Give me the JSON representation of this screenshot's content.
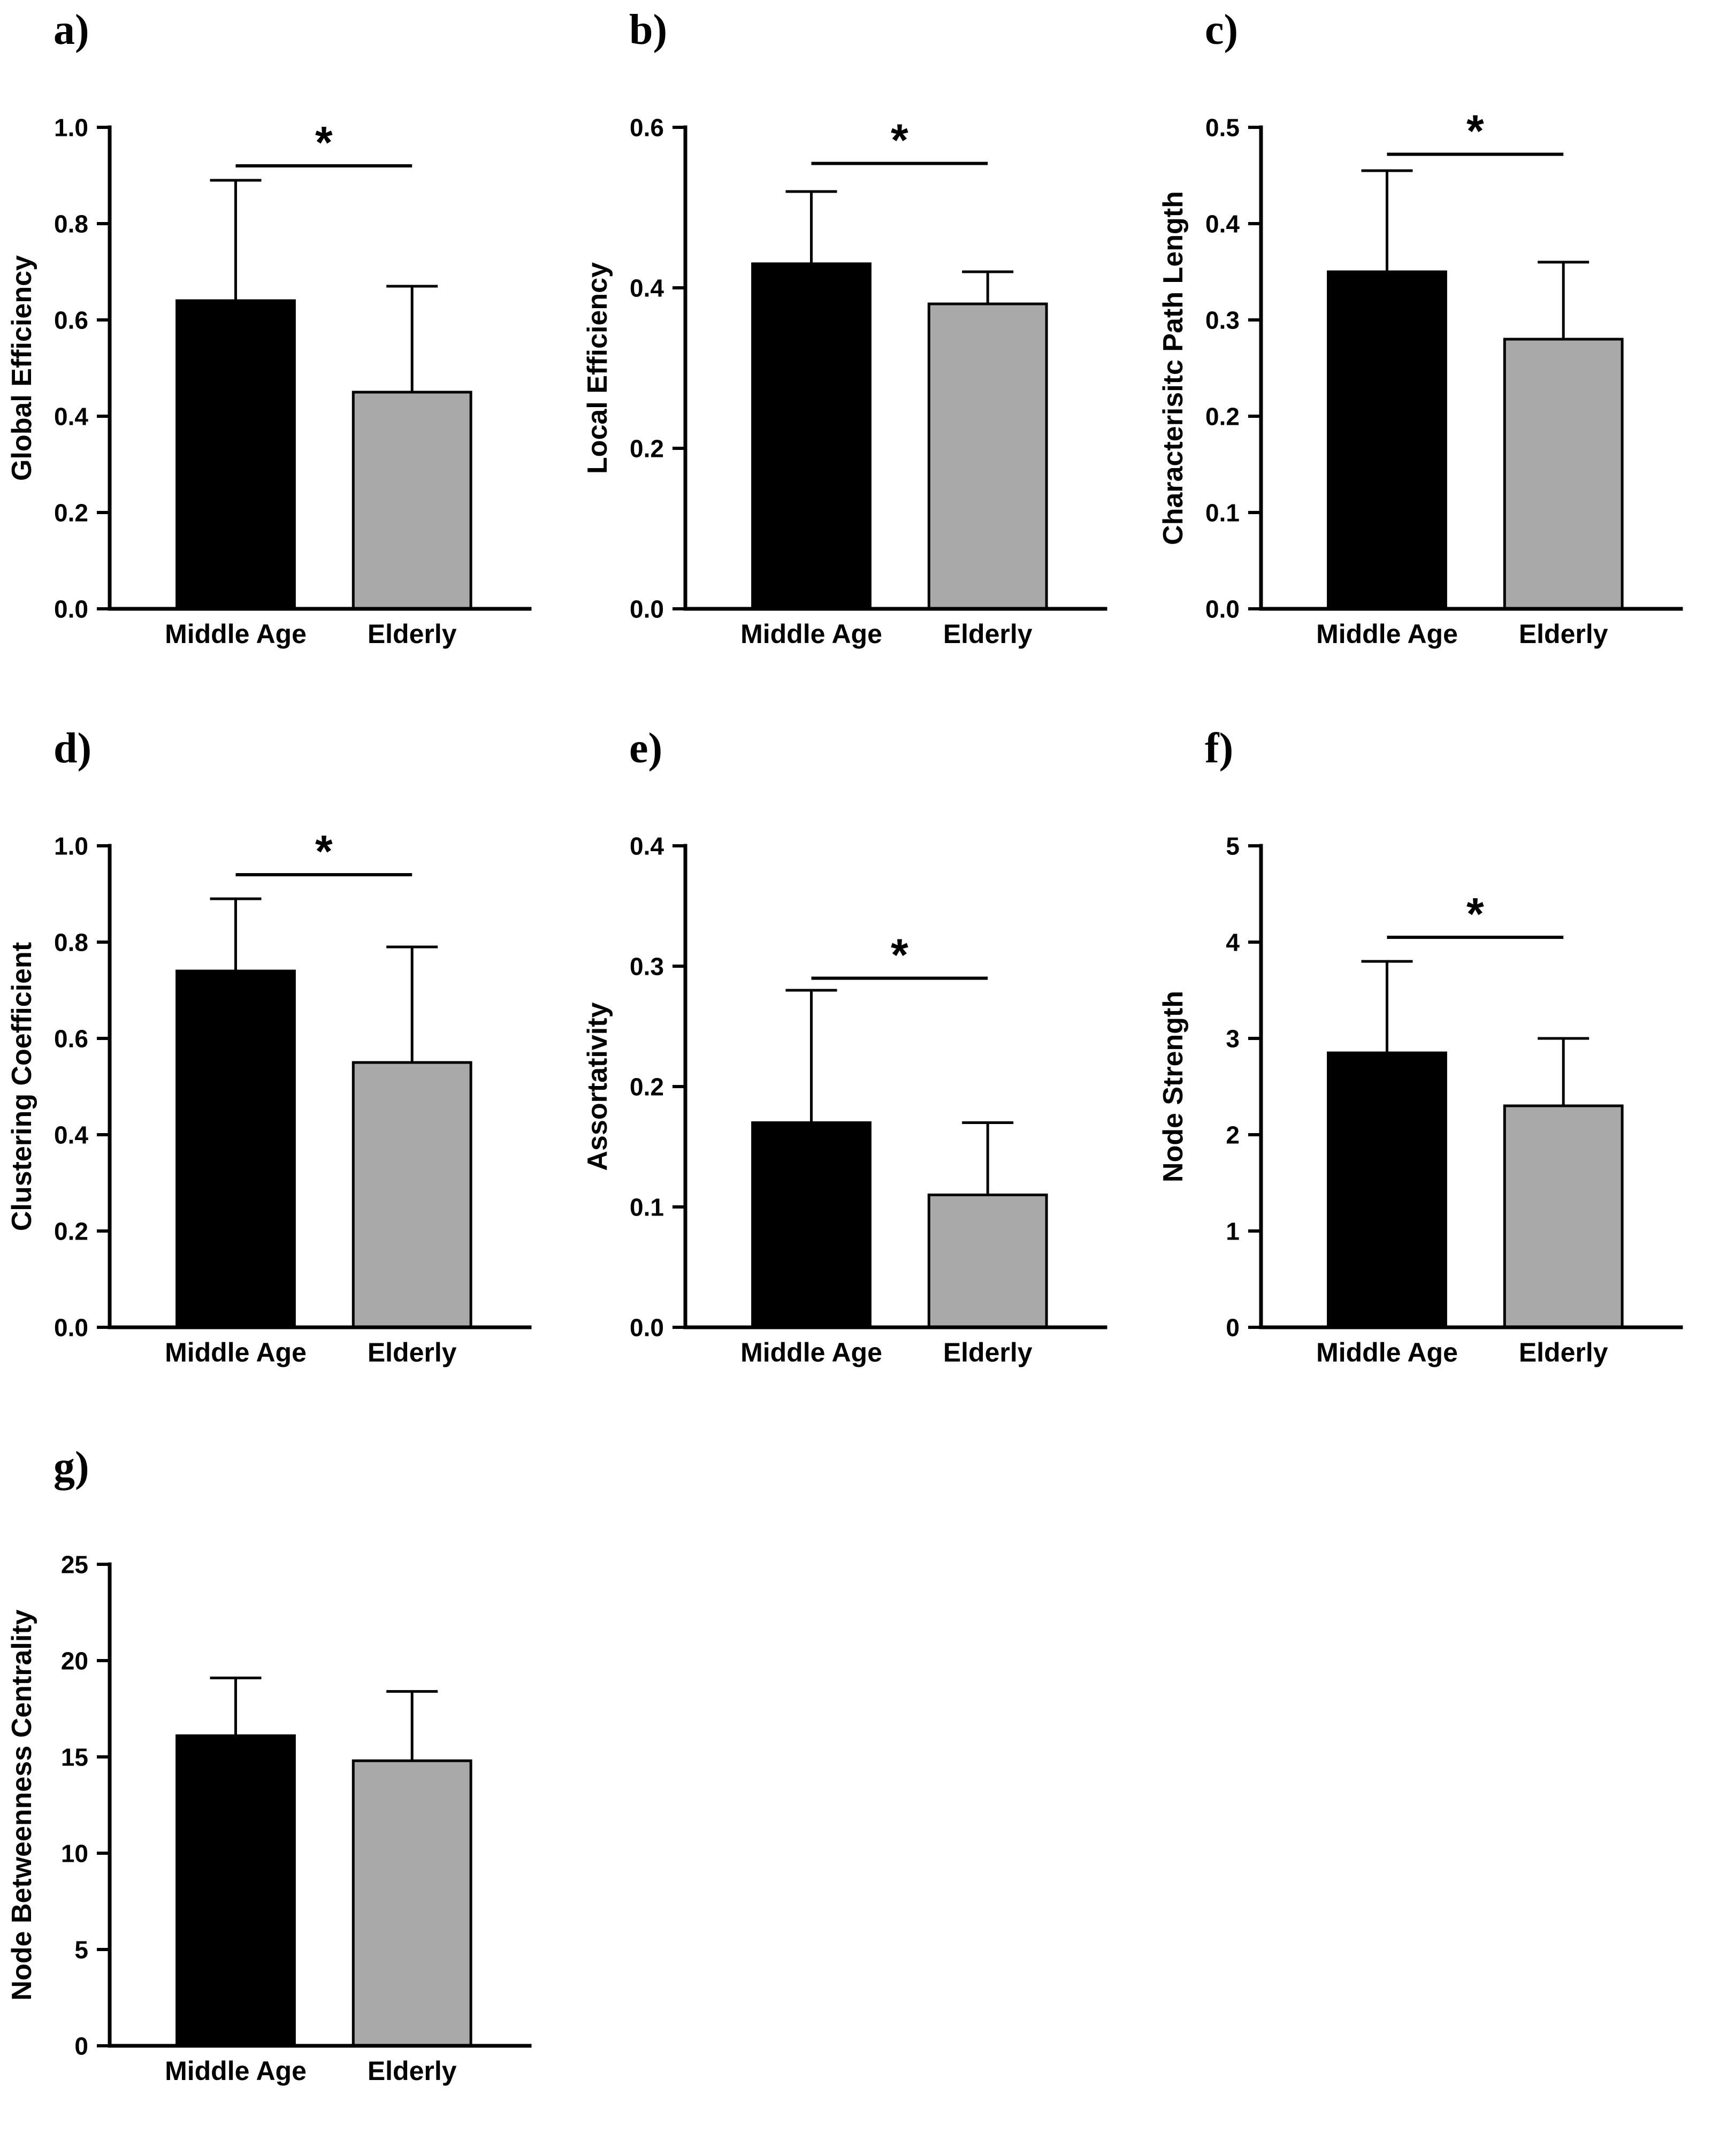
{
  "figure": {
    "background": "#ffffff",
    "text_color": "#000000",
    "bar_fill_middle_age": "#000000",
    "bar_fill_elderly": "#a9a9a9",
    "bar_stroke": "#000000",
    "categories": [
      "Middle Age",
      "Elderly"
    ],
    "significance_marker": "*"
  },
  "chart_data": [
    {
      "panel_label": "a)",
      "type": "bar",
      "ylabel": "Global Efficiency",
      "categories": [
        "Middle Age",
        "Elderly"
      ],
      "values": [
        0.64,
        0.45
      ],
      "error_top": [
        0.89,
        0.67
      ],
      "ylim": [
        0,
        1.0
      ],
      "yticks": [
        0,
        0.2,
        0.4,
        0.6,
        0.8,
        1.0
      ],
      "ytick_labels": [
        "0.0",
        "0.2",
        "0.4",
        "0.6",
        "0.8",
        "1.0"
      ],
      "significance": "*",
      "sig_line_y": 0.92,
      "grid": false,
      "legend": ""
    },
    {
      "panel_label": "b)",
      "type": "bar",
      "ylabel": "Local Efficiency",
      "categories": [
        "Middle Age",
        "Elderly"
      ],
      "values": [
        0.43,
        0.38
      ],
      "error_top": [
        0.52,
        0.42
      ],
      "ylim": [
        0,
        0.6
      ],
      "yticks": [
        0,
        0.2,
        0.4,
        0.6
      ],
      "ytick_labels": [
        "0.0",
        "0.2",
        "0.4",
        "0.6"
      ],
      "significance": "*",
      "sig_line_y": 0.555,
      "grid": false,
      "legend": ""
    },
    {
      "panel_label": "c)",
      "type": "bar",
      "ylabel": "Characterisitc Path Length",
      "categories": [
        "Middle Age",
        "Elderly"
      ],
      "values": [
        0.35,
        0.28
      ],
      "error_top": [
        0.455,
        0.36
      ],
      "ylim": [
        0,
        0.5
      ],
      "yticks": [
        0,
        0.1,
        0.2,
        0.3,
        0.4,
        0.5
      ],
      "ytick_labels": [
        "0.0",
        "0.1",
        "0.2",
        "0.3",
        "0.4",
        "0.5"
      ],
      "significance": "*",
      "sig_line_y": 0.472,
      "grid": false,
      "legend": ""
    },
    {
      "panel_label": "d)",
      "type": "bar",
      "ylabel": "Clustering Coefficient",
      "categories": [
        "Middle Age",
        "Elderly"
      ],
      "values": [
        0.74,
        0.55
      ],
      "error_top": [
        0.89,
        0.79
      ],
      "ylim": [
        0,
        1.0
      ],
      "yticks": [
        0,
        0.2,
        0.4,
        0.6,
        0.8,
        1.0
      ],
      "ytick_labels": [
        "0.0",
        "0.2",
        "0.4",
        "0.6",
        "0.8",
        "1.0"
      ],
      "significance": "*",
      "sig_line_y": 0.94,
      "grid": false,
      "legend": ""
    },
    {
      "panel_label": "e)",
      "type": "bar",
      "ylabel": "Assortativity",
      "categories": [
        "Middle Age",
        "Elderly"
      ],
      "values": [
        0.17,
        0.11
      ],
      "error_top": [
        0.28,
        0.17
      ],
      "ylim": [
        0,
        0.4
      ],
      "yticks": [
        0,
        0.1,
        0.2,
        0.3,
        0.4
      ],
      "ytick_labels": [
        "0.0",
        "0.1",
        "0.2",
        "0.3",
        "0.4"
      ],
      "significance": "*",
      "sig_line_y": 0.29,
      "grid": false,
      "legend": ""
    },
    {
      "panel_label": "f)",
      "type": "bar",
      "ylabel": "Node Strength",
      "categories": [
        "Middle Age",
        "Elderly"
      ],
      "values": [
        2.85,
        2.3
      ],
      "error_top": [
        3.8,
        3.0
      ],
      "ylim": [
        0,
        5
      ],
      "yticks": [
        0,
        1,
        2,
        3,
        4,
        5
      ],
      "ytick_labels": [
        "0",
        "1",
        "2",
        "3",
        "4",
        "5"
      ],
      "significance": "*",
      "sig_line_y": 4.05,
      "grid": false,
      "legend": ""
    },
    {
      "panel_label": "g)",
      "type": "bar",
      "ylabel": "Node Betweenness Centrality",
      "categories": [
        "Middle Age",
        "Elderly"
      ],
      "values": [
        16.1,
        14.8
      ],
      "error_top": [
        19.1,
        18.4
      ],
      "ylim": [
        0,
        25
      ],
      "yticks": [
        0,
        5,
        10,
        15,
        20,
        25
      ],
      "ytick_labels": [
        "0",
        "5",
        "10",
        "15",
        "20",
        "25"
      ],
      "significance": "",
      "sig_line_y": null,
      "grid": false,
      "legend": ""
    }
  ]
}
